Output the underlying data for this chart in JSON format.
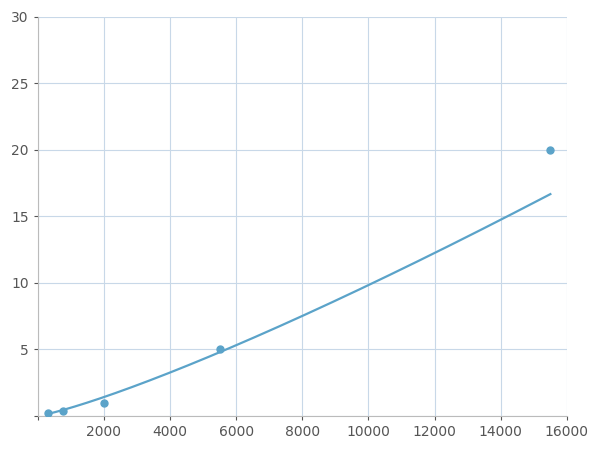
{
  "x_data": [
    300,
    750,
    2000,
    5500,
    15500
  ],
  "y_data": [
    0.2,
    0.35,
    1.0,
    5.0,
    20.0
  ],
  "line_color": "#5BA3C9",
  "marker_color": "#5BA3C9",
  "marker_size": 5,
  "line_width": 1.6,
  "xlim": [
    0,
    16000
  ],
  "ylim": [
    0,
    30
  ],
  "xticks": [
    0,
    2000,
    4000,
    6000,
    8000,
    10000,
    12000,
    14000,
    16000
  ],
  "yticks": [
    0,
    5,
    10,
    15,
    20,
    25,
    30
  ],
  "grid_color": "#c8d8e8",
  "background_color": "#ffffff",
  "tick_fontsize": 10
}
